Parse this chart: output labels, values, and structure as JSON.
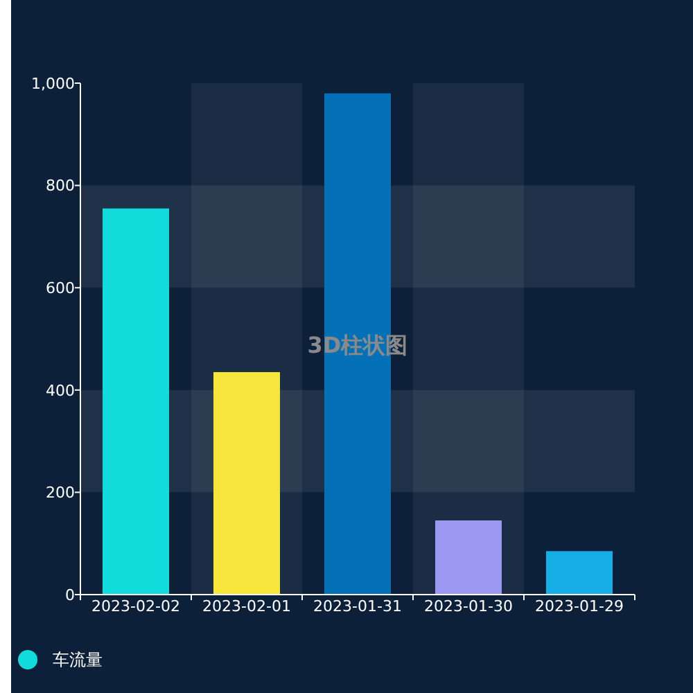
{
  "chart_data": {
    "type": "bar",
    "title": "3D柱状图",
    "categories": [
      "2023-02-02",
      "2023-02-01",
      "2023-01-31",
      "2023-01-30",
      "2023-01-29"
    ],
    "series": [
      {
        "name": "车流量",
        "color": "#11dcdc",
        "colors": [
          "#11dcdc",
          "#f6e53a",
          "#0470b8",
          "#9b98f2",
          "#15aee6"
        ],
        "values": [
          755,
          435,
          980,
          145,
          85
        ]
      }
    ],
    "ylim": [
      0,
      1000
    ],
    "yticks": [
      0,
      200,
      400,
      600,
      800,
      {
        "value": 1000,
        "label": "1,000"
      }
    ],
    "legend": "bottom left"
  }
}
